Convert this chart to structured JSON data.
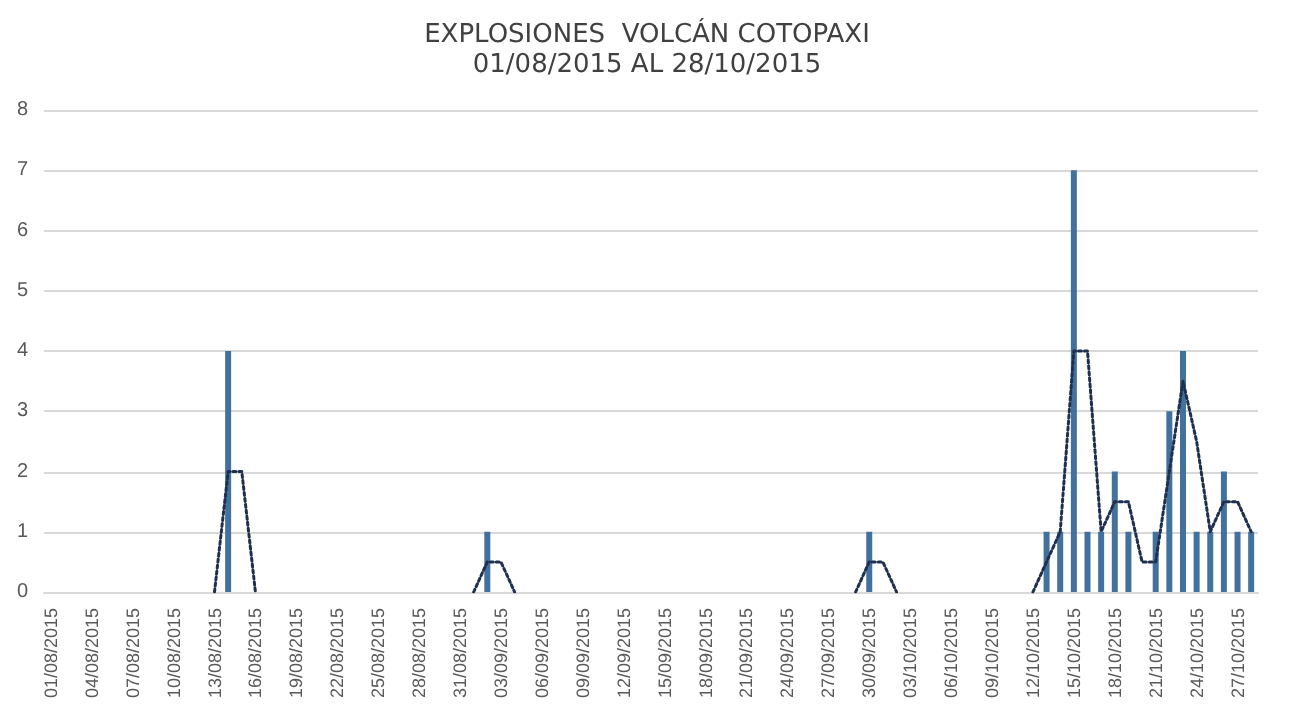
{
  "chart_data": {
    "type": "bar",
    "title": "EXPLOSIONES  VOLCÁN COTOPAXI",
    "subtitle": "01/08/2015 AL 28/10/2015",
    "categories": [
      "01/08/2015",
      null,
      null,
      "04/08/2015",
      null,
      null,
      "07/08/2015",
      null,
      null,
      "10/08/2015",
      null,
      null,
      "13/08/2015",
      null,
      null,
      "16/08/2015",
      null,
      null,
      "19/08/2015",
      null,
      null,
      "22/08/2015",
      null,
      null,
      "25/08/2015",
      null,
      null,
      "28/08/2015",
      null,
      null,
      "31/08/2015",
      null,
      null,
      "03/09/2015",
      null,
      null,
      "06/09/2015",
      null,
      null,
      "09/09/2015",
      null,
      null,
      "12/09/2015",
      null,
      null,
      "15/09/2015",
      null,
      null,
      "18/09/2015",
      null,
      null,
      "21/09/2015",
      null,
      null,
      "24/09/2015",
      null,
      null,
      "27/09/2015",
      null,
      null,
      "30/09/2015",
      null,
      null,
      "03/10/2015",
      null,
      null,
      "06/10/2015",
      null,
      null,
      "09/10/2015",
      null,
      null,
      "12/10/2015",
      null,
      null,
      "15/10/2015",
      null,
      null,
      "18/10/2015",
      null,
      null,
      "21/10/2015",
      null,
      null,
      "24/10/2015",
      null,
      null,
      "27/10/2015",
      null
    ],
    "series": [
      {
        "color": "#41719c",
        "values": [
          0,
          0,
          0,
          0,
          0,
          0,
          0,
          0,
          0,
          0,
          0,
          0,
          0,
          4,
          0,
          0,
          0,
          0,
          0,
          0,
          0,
          0,
          0,
          0,
          0,
          0,
          0,
          0,
          0,
          0,
          0,
          0,
          1,
          0,
          0,
          0,
          0,
          0,
          0,
          0,
          0,
          0,
          0,
          0,
          0,
          0,
          0,
          0,
          0,
          0,
          0,
          0,
          0,
          0,
          0,
          0,
          0,
          0,
          0,
          0,
          1,
          0,
          0,
          0,
          0,
          0,
          0,
          0,
          0,
          0,
          0,
          0,
          0,
          1,
          1,
          7,
          1,
          1,
          2,
          1,
          0,
          1,
          3,
          4,
          1,
          1,
          2,
          1,
          1
        ]
      },
      {
        "type": "line",
        "color": "#1f2f4f",
        "line_style": "dotted",
        "marker": "none",
        "values": [
          null,
          null,
          null,
          null,
          null,
          null,
          null,
          null,
          null,
          null,
          null,
          null,
          0,
          2,
          2,
          0,
          null,
          null,
          null,
          null,
          null,
          null,
          null,
          null,
          null,
          null,
          null,
          null,
          null,
          null,
          null,
          0,
          0.5,
          0.5,
          0,
          null,
          null,
          null,
          null,
          null,
          null,
          null,
          null,
          null,
          null,
          null,
          null,
          null,
          null,
          null,
          null,
          null,
          null,
          null,
          null,
          null,
          null,
          null,
          null,
          0,
          0.5,
          0.5,
          0,
          null,
          null,
          null,
          null,
          null,
          null,
          null,
          null,
          null,
          0,
          0.5,
          1,
          4,
          4,
          1,
          1.5,
          1.5,
          0.5,
          0.5,
          2,
          3.5,
          2.5,
          1,
          1.5,
          1.5,
          1
        ]
      }
    ],
    "ylim": [
      0,
      8
    ],
    "yticks": [
      0,
      1,
      2,
      3,
      4,
      5,
      6,
      7,
      8
    ],
    "grid": "y"
  }
}
